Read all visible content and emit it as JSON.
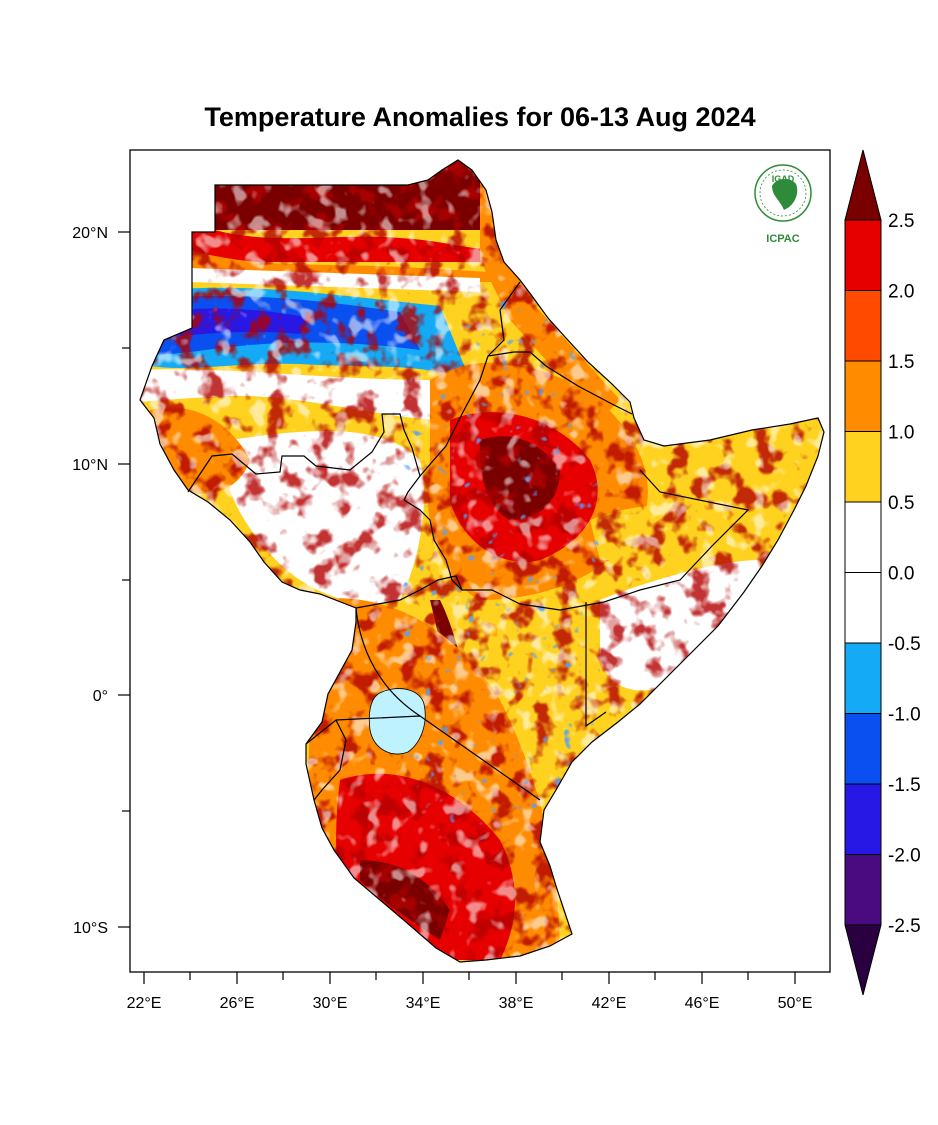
{
  "map": {
    "title": "Temperature Anomalies for 06-13 Aug 2024",
    "logo": {
      "top_text": "IGAD",
      "bottom_text": "ICPAC",
      "color": "#2e8b3a"
    },
    "lon_ticks": [
      "22°E",
      "26°E",
      "30°E",
      "34°E",
      "38°E",
      "42°E",
      "46°E",
      "50°E"
    ],
    "lat_ticks": [
      "20°N",
      "10°N",
      "0°",
      "10°S"
    ],
    "colorbar": {
      "labels": [
        "2.5",
        "2.0",
        "1.5",
        "1.0",
        "0.5",
        "0.0",
        "-0.5",
        "-1.0",
        "-1.5",
        "-2.0",
        "-2.5"
      ],
      "colors": [
        "#7a0000",
        "#e60000",
        "#ff4a00",
        "#ff8c00",
        "#ffd21f",
        "#ffffff",
        "#ffffff",
        "#14aaf5",
        "#0a50f0",
        "#2818e6",
        "#4a0a80",
        "#2a0040"
      ]
    }
  }
}
